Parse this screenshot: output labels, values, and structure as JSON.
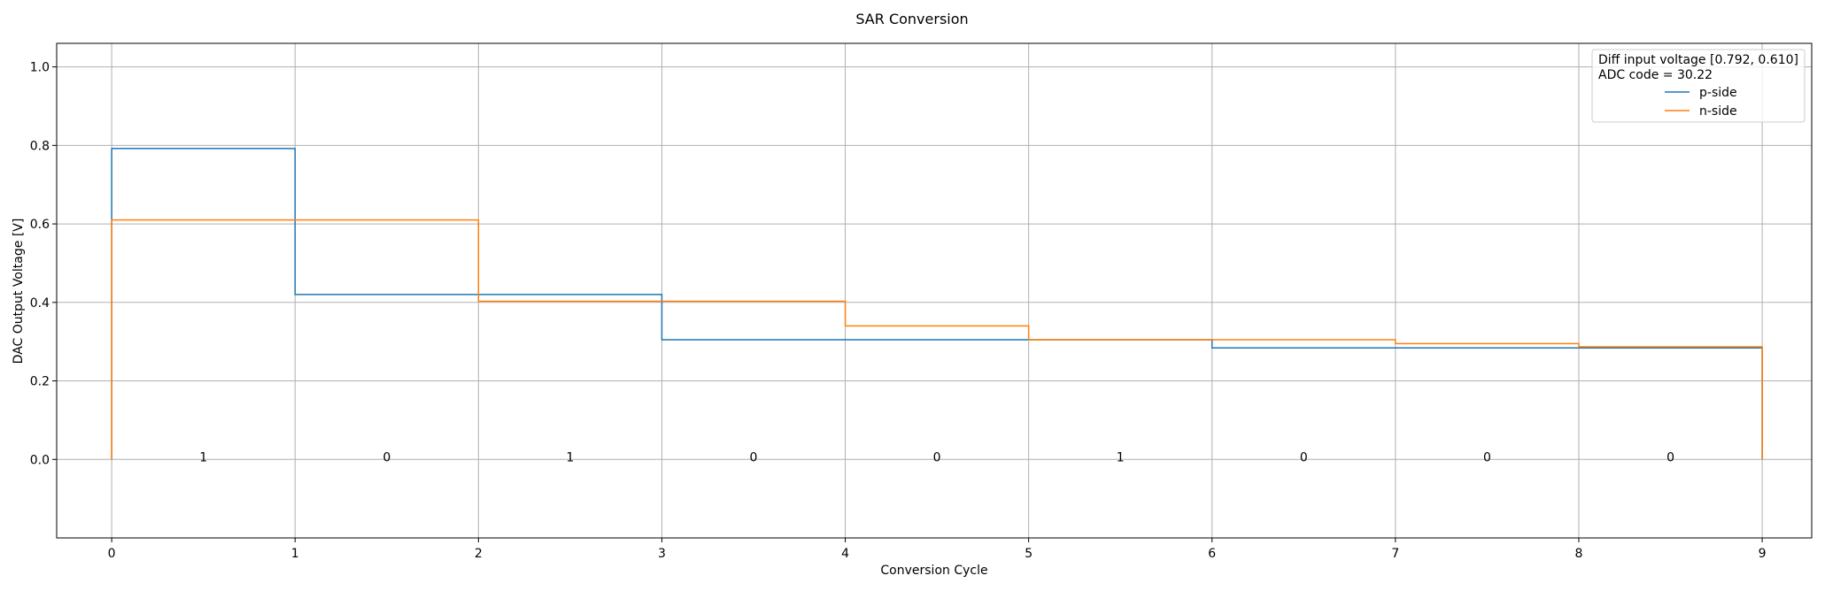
{
  "chart_data": {
    "type": "line",
    "title": "SAR Conversion",
    "xlabel": "Conversion Cycle",
    "ylabel": "DAC Output Voltage [V]",
    "xlim": [
      -0.3,
      9.27
    ],
    "ylim": [
      -0.2,
      1.06
    ],
    "x_ticks": [
      0,
      1,
      2,
      3,
      4,
      5,
      6,
      7,
      8,
      9
    ],
    "y_ticks": [
      0.0,
      0.2,
      0.4,
      0.6,
      0.8,
      1.0
    ],
    "y_tick_labels": [
      "0.0",
      "0.2",
      "0.4",
      "0.6",
      "0.8",
      "1.0"
    ],
    "grid": true,
    "step": "post",
    "legend": {
      "placement": "top-right",
      "title_lines": [
        "Diff input voltage [0.792, 0.610]",
        "ADC code = 30.22"
      ]
    },
    "series": [
      {
        "name": "p-side",
        "color": "#1f77b4",
        "x": [
          0,
          0,
          1,
          2,
          3,
          4,
          5,
          6,
          7,
          8,
          9,
          9
        ],
        "values": [
          0.0,
          0.792,
          0.42,
          0.42,
          0.305,
          0.305,
          0.305,
          0.284,
          0.284,
          0.284,
          0.284,
          0.0
        ]
      },
      {
        "name": "n-side",
        "color": "#ff7f0e",
        "x": [
          0,
          0,
          1,
          2,
          3,
          4,
          5,
          6,
          7,
          8,
          9,
          9
        ],
        "values": [
          0.0,
          0.61,
          0.61,
          0.403,
          0.403,
          0.34,
          0.305,
          0.305,
          0.295,
          0.287,
          0.287,
          0.0
        ]
      }
    ],
    "bit_labels": {
      "y": 0.0,
      "x": [
        0.5,
        1.5,
        2.5,
        3.5,
        4.5,
        5.5,
        6.5,
        7.5,
        8.5
      ],
      "values": [
        "1",
        "0",
        "1",
        "0",
        "0",
        "1",
        "0",
        "0",
        "0"
      ]
    }
  }
}
